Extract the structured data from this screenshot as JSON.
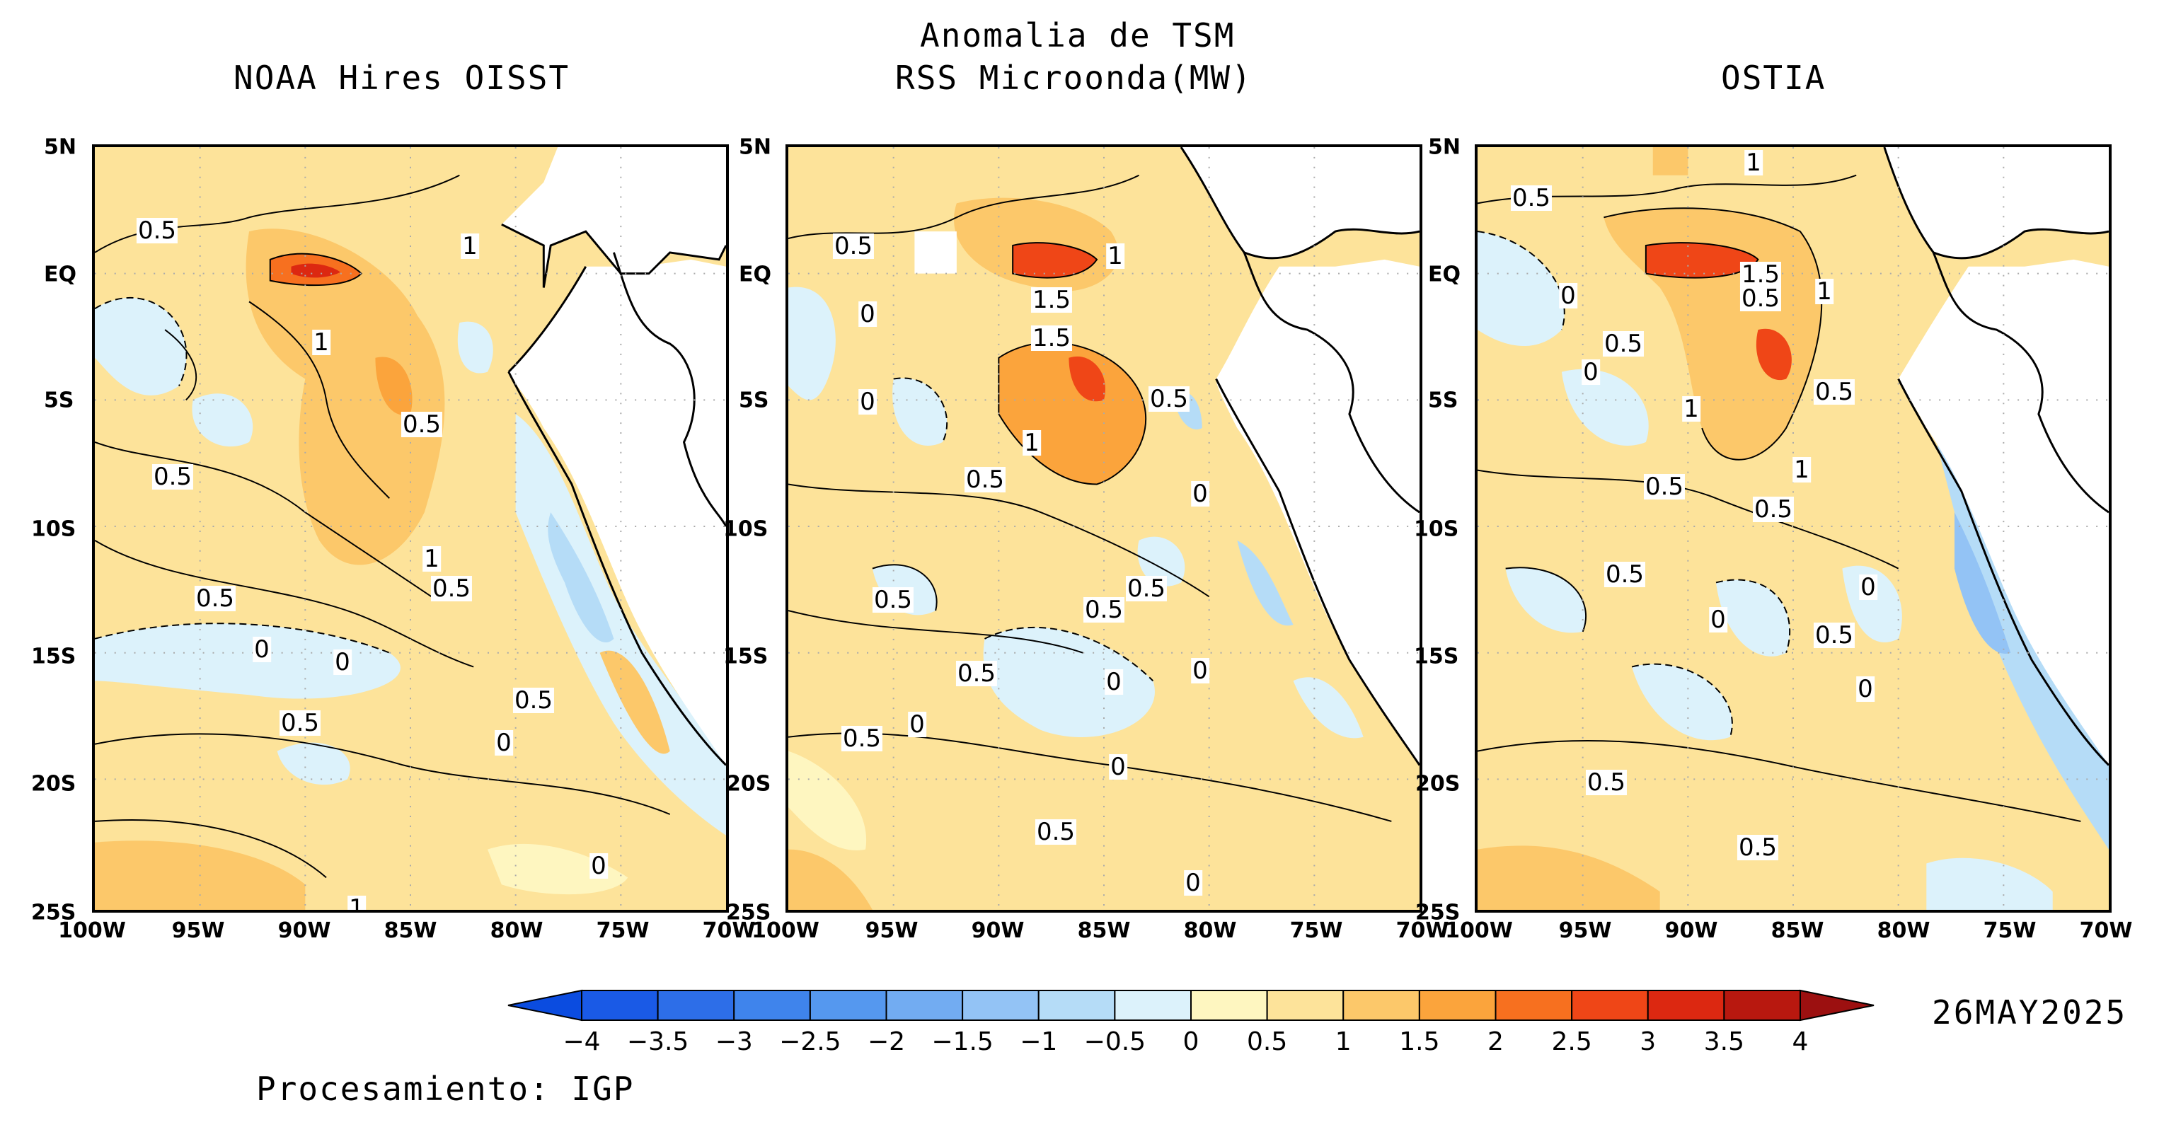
{
  "figure": {
    "main_title": "Anomalia de TSM",
    "panels": [
      {
        "title": "NOAA Hires OISST",
        "subtitle": "",
        "contour_labels": [
          "0.5",
          "1",
          "1",
          "0.5",
          "0.5",
          "1",
          "0.5",
          "0.5",
          "0",
          "0",
          "0.5",
          "0.5",
          "0",
          "0",
          "1"
        ]
      },
      {
        "title": "RSS Microonda(MW)",
        "subtitle": "",
        "contour_labels": [
          "0.5",
          "1",
          "1.5",
          "1.5",
          "0",
          "0",
          "0.5",
          "1",
          "0.5",
          "0.5",
          "0",
          "0.5",
          "0.5",
          "0.5",
          "0",
          "0",
          "0.5",
          "0",
          "0",
          "0.5",
          "0"
        ]
      },
      {
        "title": "OSTIA",
        "subtitle": "",
        "contour_labels": [
          "1",
          "0.5",
          "1.5",
          "0.5",
          "1",
          "0",
          "0.5",
          "0",
          "1",
          "0.5",
          "1",
          "0.5",
          "0.5",
          "0",
          "0.5",
          "0",
          "0.5",
          "0",
          "0.5",
          "0.5"
        ]
      }
    ],
    "lat_ticks": [
      "5N",
      "EQ",
      "5S",
      "10S",
      "15S",
      "20S",
      "25S"
    ],
    "lon_ticks": [
      "100W",
      "95W",
      "90W",
      "85W",
      "80W",
      "75W",
      "70W"
    ],
    "colorbar": {
      "ticks": [
        "−4",
        "−3.5",
        "−3",
        "−2.5",
        "−2",
        "−1.5",
        "−1",
        "−0.5",
        "0",
        "0.5",
        "1",
        "1.5",
        "2",
        "2.5",
        "3",
        "3.5",
        "4"
      ],
      "colors": [
        "#1a5ae6",
        "#2d6ee8",
        "#3f84ec",
        "#5598ef",
        "#72acf2",
        "#93c3f5",
        "#b5dcf7",
        "#dcf2fb",
        "#fef6c0",
        "#fde39a",
        "#fcc86a",
        "#fba43c",
        "#f7701f",
        "#ef4617",
        "#dc2811",
        "#b8180f"
      ],
      "under_color": "#0b4ce0",
      "over_color": "#9c1010"
    },
    "date": "26MAY2025",
    "credit": "Procesamiento: IGP"
  }
}
